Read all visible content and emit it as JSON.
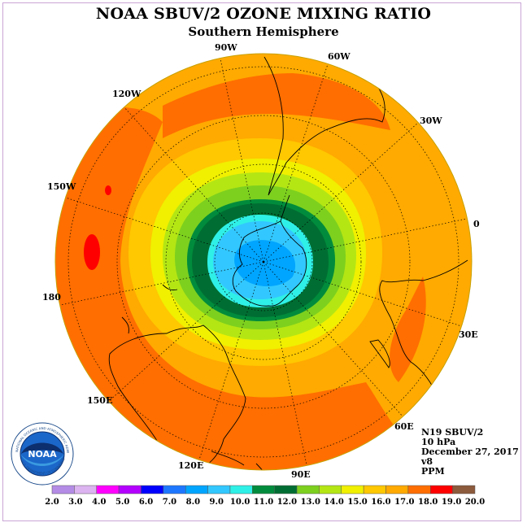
{
  "header": {
    "title": "NOAA SBUV/2 OZONE MIXING RATIO",
    "subtitle": "Southern Hemisphere"
  },
  "map": {
    "projection": "south-polar-stereographic",
    "longitude_labels": [
      "90W",
      "60W",
      "30W",
      "0",
      "30E",
      "60E",
      "90E",
      "120E",
      "150E",
      "180",
      "150W",
      "120W"
    ],
    "field_regions": [
      {
        "name": "pole",
        "value_range": [
          7.0,
          8.0
        ],
        "color": "#00a5ff"
      },
      {
        "name": "inner-core",
        "value_range": [
          8.0,
          9.0
        ],
        "color": "#32c8ff"
      },
      {
        "name": "core-ring",
        "value_range": [
          9.0,
          10.0
        ],
        "color": "#2ff0e6"
      },
      {
        "name": "ring-11",
        "value_range": [
          11.0,
          12.0
        ],
        "color": "#006e32"
      },
      {
        "name": "ring-10",
        "value_range": [
          10.0,
          11.0
        ],
        "color": "#008c3c"
      },
      {
        "name": "ring-12",
        "value_range": [
          12.0,
          13.0
        ],
        "color": "#7dd01e"
      },
      {
        "name": "ring-13",
        "value_range": [
          13.0,
          14.0
        ],
        "color": "#b4e614"
      },
      {
        "name": "ring-14",
        "value_range": [
          14.0,
          15.0
        ],
        "color": "#f0f000"
      },
      {
        "name": "ring-15",
        "value_range": [
          15.0,
          16.0
        ],
        "color": "#ffc800"
      },
      {
        "name": "ring-16",
        "value_range": [
          16.0,
          17.0
        ],
        "color": "#ffaa00"
      },
      {
        "name": "ring-17",
        "value_range": [
          17.0,
          18.0
        ],
        "color": "#ff6e00"
      },
      {
        "name": "maximum",
        "value_range": [
          18.0,
          19.0
        ],
        "color": "#ff0000"
      }
    ]
  },
  "logo": {
    "text": "NOAA",
    "ring_text": "NATIONAL OCEANIC AND ATMOSPHERIC ADMINISTRATION",
    "ring_text_bottom": "U.S. DEPARTMENT OF COMMERCE",
    "icon": "noaa-logo-icon"
  },
  "info": {
    "line1": "N19 SBUV/2",
    "line2": "10 hPa",
    "line3": "December 27, 2017",
    "line4": "v8",
    "line5": "PPM"
  },
  "colorbar": {
    "labels": [
      "2.0",
      "3.0",
      "4.0",
      "5.0",
      "6.0",
      "7.0",
      "8.0",
      "9.0",
      "10.0",
      "11.0",
      "12.0",
      "13.0",
      "14.0",
      "15.0",
      "16.0",
      "17.0",
      "18.0",
      "19.0",
      "20.0"
    ],
    "colors": [
      "#b48ce6",
      "#dcb4f0",
      "#ff00ff",
      "#b400ff",
      "#0000ff",
      "#1e78ff",
      "#00a5ff",
      "#32c8ff",
      "#2ff0e6",
      "#008c3c",
      "#006e32",
      "#7dd01e",
      "#b4e614",
      "#f0f000",
      "#ffc800",
      "#ffaa00",
      "#ff6e00",
      "#ff0000",
      "#8c5a3c"
    ]
  }
}
